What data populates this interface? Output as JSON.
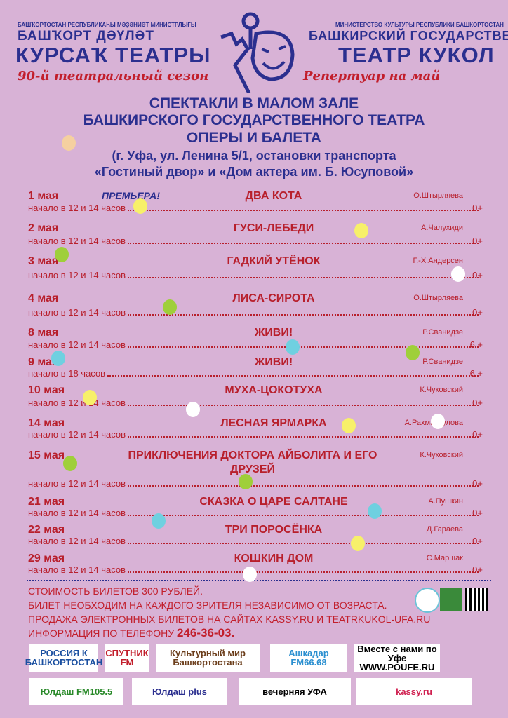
{
  "header": {
    "ministry_bash": "БАШҠОРТОСТАН РЕСПУБЛИКАҺЫ МӘҘӘНИӘТ МИНИСТРЛЫҒЫ",
    "theatre_bash_line1": "БАШҠОРТ ДӘҮЛӘТ",
    "theatre_bash_line2": "КУРСАҠ ТЕАТРЫ",
    "season": "90-й театральный сезон",
    "ministry_ru": "МИНИСТЕРСТВО КУЛЬТУРЫ РЕСПУБЛИКИ БАШКОРТОСТАН",
    "theatre_ru_line1": "БАШКИРСКИЙ ГОСУДАРСТВЕННЫЙ",
    "theatre_ru_line2": "ТЕАТР КУКОЛ",
    "repertoire": "Репертуар на май"
  },
  "headline": {
    "line1": "СПЕКТАКЛИ В МАЛОМ ЗАЛЕ",
    "line2": "БАШКИРСКОГО ГОСУДАРСТВЕННОГО ТЕАТРА",
    "line3": "ОПЕРЫ И БАЛЕТА",
    "address1": "(г. Уфа, ул. Ленина 5/1, остановки транспорта",
    "address2": "«Гостиный двор» и «Дом актера им. Б. Юсуповой»"
  },
  "premiere_label": "ПРЕМЬЕРА!",
  "schedule": [
    {
      "date": "1  мая",
      "title": "ДВА  КОТА",
      "author": "О.Штырляева",
      "start": "начало в 12 и 14 часов",
      "age": "0+",
      "premiere": true
    },
    {
      "date": "2  мая",
      "title": "ГУСИ-ЛЕБЕДИ",
      "author": "А.Чалухиди",
      "start": "начало в 12 и 14 часов",
      "age": "0+"
    },
    {
      "date": "3  мая",
      "title": "ГАДКИЙ УТЁНОК",
      "author": "Г.-Х.Андерсен",
      "start": "начало в 12 и 14 часов",
      "age": "0+"
    },
    {
      "date": "4 мая",
      "title": "ЛИСА-СИРОТА",
      "author": "О.Штырляева",
      "start": "начало в 12 и 14 часов",
      "age": "0+"
    },
    {
      "date": "8 мая",
      "title": "ЖИВИ!",
      "author": "Р.Сванидзе",
      "start": "начало в 12 и 14 часов",
      "age": "6 +"
    },
    {
      "date": "9 мая",
      "title": "ЖИВИ!",
      "author": "Р.Сванидзе",
      "start": "начало в 18 часов",
      "age": "6 +"
    },
    {
      "date": "10 мая",
      "title": "МУХА-ЦОКОТУХА",
      "author": "К.Чуковский",
      "start": "начало в 12 и 14 часов",
      "age": "0+"
    },
    {
      "date": "14 мая",
      "title": "ЛЕСНАЯ ЯРМАРКА",
      "author": "А.Рахманкулова",
      "start": "начало в 12 и 14 часов",
      "age": "0+"
    },
    {
      "date": "15 мая",
      "title": "ПРИКЛЮЧЕНИЯ ДОКТОРА АЙБОЛИТА И ЕГО ДРУЗЕЙ",
      "author": "К.Чуковский",
      "start": "начало в 12 и 14 часов",
      "age": "0+"
    },
    {
      "date": "21 мая",
      "title": "СКАЗКА О ЦАРЕ САЛТАНЕ",
      "author": "А.Пушкин",
      "start": "начало в 12 и 14 часов",
      "age": "0+"
    },
    {
      "date": "22 мая",
      "title": "ТРИ ПОРОСЁНКА",
      "author": "Д.Гараева",
      "start": "начало в 12 и 14 часов",
      "age": "0+"
    },
    {
      "date": "29 мая",
      "title": "КОШКИН ДОМ",
      "author": "С.Маршак",
      "start": "начало в 12 и 14 часов",
      "age": "0+"
    }
  ],
  "footer": {
    "price": "СТОИМОСТЬ БИЛЕТОВ 300 РУБЛЕЙ.",
    "ticket_note": "БИЛЕТ НЕОБХОДИМ НА КАЖДОГО ЗРИТЕЛЯ НЕЗАВИСИМО ОТ ВОЗРАСТА.",
    "online": "ПРОДАЖА ЭЛЕКТРОННЫХ БИЛЕТОВ НА САЙТАХ KASSY.RU И TEATRKUKOL-UFA.RU",
    "phone_label": "ИНФОРМАЦИЯ ПО ТЕЛЕФОНУ",
    "phone": "246-36-03."
  },
  "sponsors": [
    {
      "name": "РОССИЯ К БАШКОРТОСТАН"
    },
    {
      "name": "СПУТНИК FM"
    },
    {
      "name": "Культурный мир Башкортостана"
    },
    {
      "name": "Ашкадар FM66.68"
    },
    {
      "name": "Вместе с нами по Уфе WWW.POUFE.RU"
    },
    {
      "name": "Юлдаш FM105.5"
    },
    {
      "name": "Юлдаш plus"
    },
    {
      "name": "вечерняя УФА"
    },
    {
      "name": "kassy.ru"
    }
  ],
  "colors": {
    "background": "#d8b2d6",
    "blue": "#2b2f8f",
    "red": "#c21f2c"
  }
}
